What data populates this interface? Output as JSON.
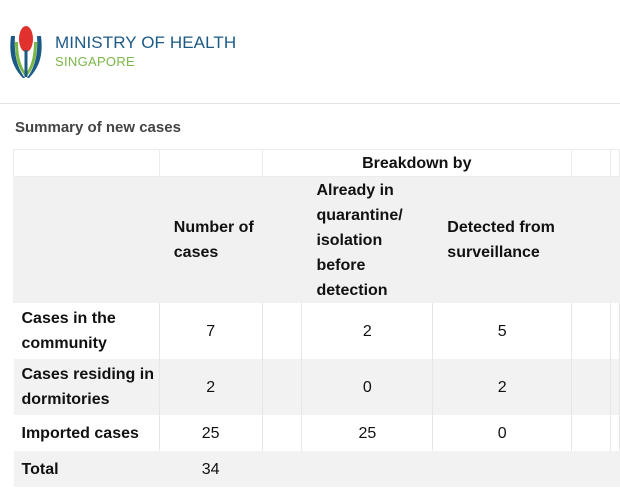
{
  "header": {
    "org_name": "MINISTRY OF HEALTH",
    "org_sub": "SINGAPORE",
    "logo_icon": "moh-flower-logo-icon"
  },
  "section_title": "Summary of new cases",
  "table": {
    "group_header": "Breakdown by",
    "col_number": "Number of cases",
    "col_quarantine": "Already in quarantine/ isolation before detection",
    "col_surveillance": "Detected from surveillance",
    "rows": [
      {
        "label": "Cases in the community",
        "number": "7",
        "quarantine": "2",
        "surveillance": "5"
      },
      {
        "label": "Cases residing in dormitories",
        "number": "2",
        "quarantine": "0",
        "surveillance": "2"
      },
      {
        "label": "Imported cases",
        "number": "25",
        "quarantine": "25",
        "surveillance": "0"
      }
    ],
    "total": {
      "label": "Total",
      "number": "34"
    }
  },
  "colors": {
    "brand_blue": "#1c5a86",
    "brand_green": "#7ab648",
    "logo_red": "#e0312c"
  }
}
